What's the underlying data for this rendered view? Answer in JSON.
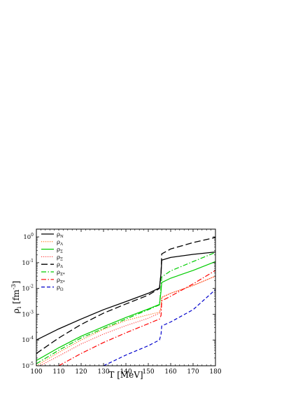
{
  "chart_data": {
    "type": "line",
    "xlabel": "T [MeV]",
    "ylabel_symbol": "ρ",
    "ylabel_sub": "i",
    "ylabel_unit_pre": "[fm",
    "ylabel_unit_sup": "-3",
    "ylabel_unit_post": "]",
    "xlim": [
      100,
      180
    ],
    "ylim": [
      1e-05,
      2
    ],
    "yscale": "log",
    "grid": false,
    "legend_position": "top-left",
    "x_ticks": [
      {
        "value": 100,
        "label": "100"
      },
      {
        "value": 110,
        "label": "110"
      },
      {
        "value": 120,
        "label": "120"
      },
      {
        "value": 130,
        "label": "130"
      },
      {
        "value": 140,
        "label": "140"
      },
      {
        "value": 150,
        "label": "150"
      },
      {
        "value": 160,
        "label": "160"
      },
      {
        "value": 170,
        "label": "170"
      },
      {
        "value": 180,
        "label": "180"
      }
    ],
    "y_ticks": [
      {
        "value": 1e-05,
        "base": "10",
        "exp": "-5"
      },
      {
        "value": 0.0001,
        "base": "10",
        "exp": "-4"
      },
      {
        "value": 0.001,
        "base": "10",
        "exp": "-3"
      },
      {
        "value": 0.01,
        "base": "10",
        "exp": "-2"
      },
      {
        "value": 0.1,
        "base": "10",
        "exp": "-1"
      },
      {
        "value": 1,
        "base": "10",
        "exp": "0"
      }
    ],
    "series": [
      {
        "name": "ρN",
        "sym": "ρ",
        "sub": "N",
        "color": "#000000",
        "dash": "",
        "width": 1.3,
        "x": [
          100,
          110,
          120,
          130,
          140,
          150,
          155,
          155.7,
          156,
          160,
          170,
          180
        ],
        "y": [
          0.0001,
          0.00027,
          0.00065,
          0.0015,
          0.0031,
          0.0065,
          0.0105,
          0.04,
          0.125,
          0.16,
          0.21,
          0.26
        ]
      },
      {
        "name": "ρΛ",
        "sym": "ρ",
        "sub": "Λ",
        "color": "#ff6600",
        "dash": "1.2,1.8",
        "width": 1.1,
        "x": [
          100,
          110,
          120,
          130,
          140,
          150,
          155,
          155.7,
          156,
          160,
          170,
          180
        ],
        "y": [
          1e-05,
          3.3e-05,
          0.0001,
          0.00026,
          0.00057,
          0.00095,
          0.0012,
          0.0018,
          0.0045,
          0.0065,
          0.013,
          0.03
        ]
      },
      {
        "name": "ρΣ",
        "sym": "ρ",
        "sub": "Σ",
        "color": "#00cc00",
        "dash": "",
        "width": 1.2,
        "x": [
          100,
          110,
          120,
          130,
          140,
          150,
          155,
          155.7,
          156,
          160,
          170,
          180
        ],
        "y": [
          1.6e-05,
          5e-05,
          0.00014,
          0.00033,
          0.00075,
          0.0016,
          0.0024,
          0.008,
          0.017,
          0.025,
          0.05,
          0.11
        ]
      },
      {
        "name": "ρΞ",
        "sym": "ρ",
        "sub": "Ξ",
        "color": "#ff3333",
        "dash": "1.2,1.8",
        "width": 1.1,
        "x": [
          100,
          110,
          120,
          130,
          140,
          150,
          155,
          155.7,
          156,
          160,
          170,
          180
        ],
        "y": [
          8.5e-06,
          2.4e-05,
          7e-05,
          0.00017,
          0.00036,
          0.0007,
          0.0011,
          0.0018,
          0.0045,
          0.0065,
          0.013,
          0.03
        ]
      },
      {
        "name": "ρΔ",
        "sym": "ρ",
        "sub": "Δ",
        "color": "#000000",
        "dash": "9,4",
        "width": 1.3,
        "x": [
          100,
          110,
          120,
          130,
          140,
          150,
          155,
          155.7,
          156,
          160,
          170,
          180
        ],
        "y": [
          3e-05,
          0.00012,
          0.0004,
          0.0011,
          0.0025,
          0.0055,
          0.01,
          0.04,
          0.22,
          0.34,
          0.6,
          0.95
        ]
      },
      {
        "name": "ρΣ*",
        "sym": "ρ",
        "sub": "Σ*",
        "color": "#00cc00",
        "dash": "7,2.5,1.5,2.5",
        "width": 1.2,
        "x": [
          100,
          110,
          120,
          130,
          140,
          150,
          155,
          155.7,
          156,
          160,
          170,
          180
        ],
        "y": [
          1.2e-05,
          4e-05,
          0.00012,
          0.00028,
          0.00065,
          0.0015,
          0.0023,
          0.012,
          0.028,
          0.048,
          0.11,
          0.25
        ]
      },
      {
        "name": "ρΞ*",
        "sym": "ρ",
        "sub": "Ξ*",
        "color": "#ff0000",
        "dash": "7,2.5,1.5,2.5",
        "width": 1.2,
        "x": [
          110,
          120,
          130,
          140,
          150,
          155,
          155.7,
          156,
          160,
          170,
          180
        ],
        "y": [
          1e-05,
          3e-05,
          8e-05,
          0.00019,
          0.00043,
          0.00065,
          0.0009,
          0.0033,
          0.005,
          0.015,
          0.05
        ]
      },
      {
        "name": "ρΩ",
        "sym": "ρ",
        "sub": "Ω",
        "color": "#0000cc",
        "dash": "5,3",
        "width": 1.2,
        "x": [
          130,
          140,
          150,
          155,
          155.7,
          156,
          160,
          170,
          180
        ],
        "y": [
          1e-05,
          2.6e-05,
          6e-05,
          0.0001,
          0.00017,
          0.00035,
          0.0005,
          0.0015,
          0.009
        ]
      }
    ]
  }
}
